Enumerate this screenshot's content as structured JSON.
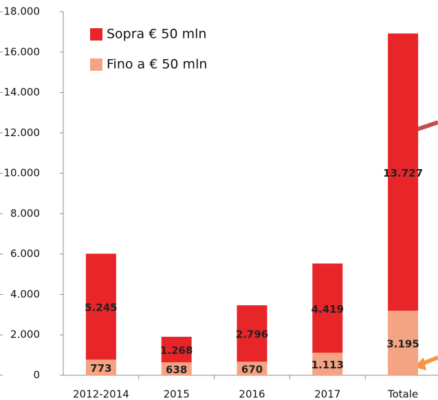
{
  "chart_data": {
    "type": "stacked_bar",
    "categories": [
      "2012-2014",
      "2015",
      "2016",
      "2017",
      "Totale"
    ],
    "series": [
      {
        "name": "Sopra € 50 mln",
        "color": "#e8262a",
        "values": [
          5245,
          1268,
          2796,
          4419,
          13727
        ],
        "value_labels": [
          "5.245",
          "1.268",
          "2.796",
          "4.419",
          "13.727"
        ]
      },
      {
        "name": "Fino a € 50 mln",
        "color": "#f4a383",
        "values": [
          773,
          638,
          670,
          1113,
          3195
        ],
        "value_labels": [
          "773",
          "638",
          "670",
          "1.113",
          "3.195"
        ]
      }
    ],
    "ylim": [
      0,
      18000
    ],
    "yticks": [
      0,
      {
        "value": 2000,
        "label": "2.000"
      },
      {
        "value": 4000,
        "label": "4.000"
      },
      {
        "value": 6000,
        "label": "6.000"
      },
      {
        "value": 8000,
        "label": "8.000"
      },
      {
        "value": 10000,
        "label": "10.000"
      },
      {
        "value": 12000,
        "label": "12.000"
      },
      {
        "value": 14000,
        "label": "14.000"
      },
      {
        "value": 16000,
        "label": "16.000"
      },
      {
        "value": 18000,
        "label": "18.000"
      }
    ],
    "legend": "top-left"
  }
}
